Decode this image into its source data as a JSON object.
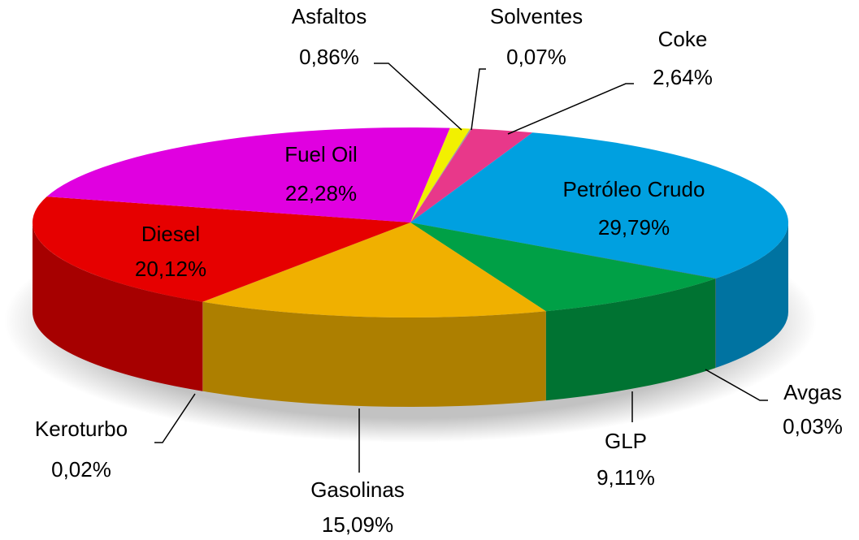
{
  "chart_data": {
    "type": "pie3d",
    "categories": [
      "Asfaltos",
      "Solventes",
      "Coke",
      "Petróleo Crudo",
      "Avgas",
      "GLP",
      "Gasolinas",
      "Keroturbo",
      "Diesel",
      "Fuel Oil"
    ],
    "values": [
      0.86,
      0.07,
      2.64,
      29.79,
      0.03,
      9.11,
      15.09,
      0.02,
      20.12,
      22.28
    ],
    "value_labels": [
      "0,86%",
      "0,07%",
      "2,64%",
      "29,79%",
      "0,03%",
      "9,11%",
      "15,09%",
      "0,02%",
      "20,12%",
      "22,28%"
    ],
    "colors": [
      "#f2f000",
      "#9a9a9a",
      "#e8388a",
      "#00a0e0",
      "#1f4e79",
      "#00a046",
      "#f0b000",
      "#ff6600",
      "#e60000",
      "#e000e0"
    ]
  }
}
